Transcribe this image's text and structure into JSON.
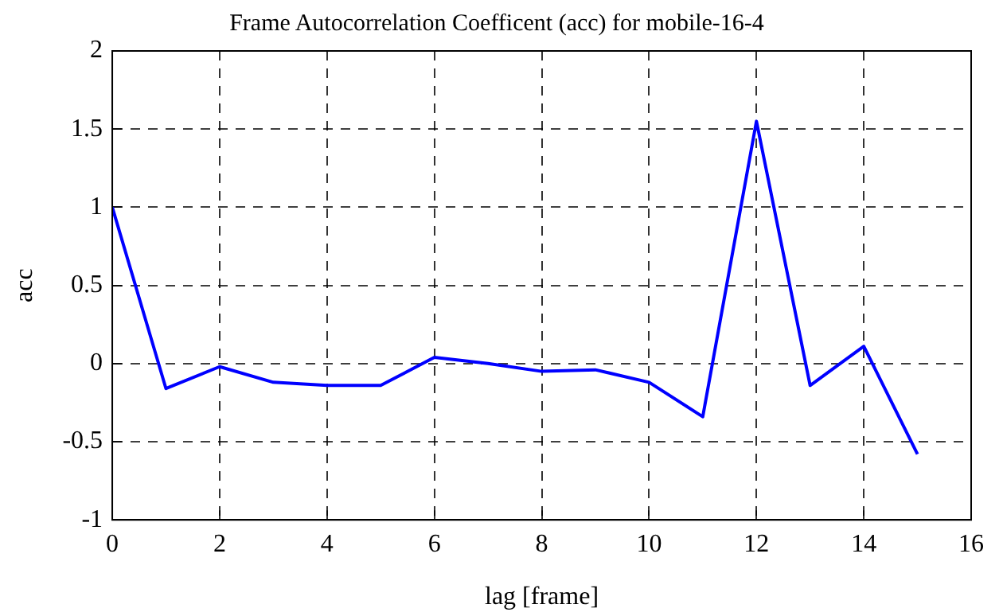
{
  "chart_data": {
    "type": "line",
    "title": "Frame Autocorrelation Coefficent (acc) for mobile-16-4",
    "xlabel": "lag [frame]",
    "ylabel": "acc",
    "x": [
      0,
      1,
      2,
      3,
      4,
      5,
      6,
      7,
      8,
      9,
      10,
      11,
      12,
      13,
      14,
      15
    ],
    "series": [
      {
        "color": "#0000ff",
        "values": [
          1.0,
          -0.16,
          -0.02,
          -0.12,
          -0.14,
          -0.14,
          0.04,
          0.0,
          -0.05,
          -0.04,
          -0.12,
          -0.34,
          1.55,
          -0.14,
          0.11,
          -0.58
        ]
      }
    ],
    "xlim": [
      0,
      16
    ],
    "xticks": [
      0,
      2,
      4,
      6,
      8,
      10,
      12,
      14,
      16
    ],
    "ylim": [
      -1,
      2
    ],
    "yticks": [
      -1,
      -0.5,
      0,
      0.5,
      1,
      1.5,
      2
    ],
    "grid": true,
    "legend": false,
    "marker": "none",
    "line_style": "solid"
  }
}
